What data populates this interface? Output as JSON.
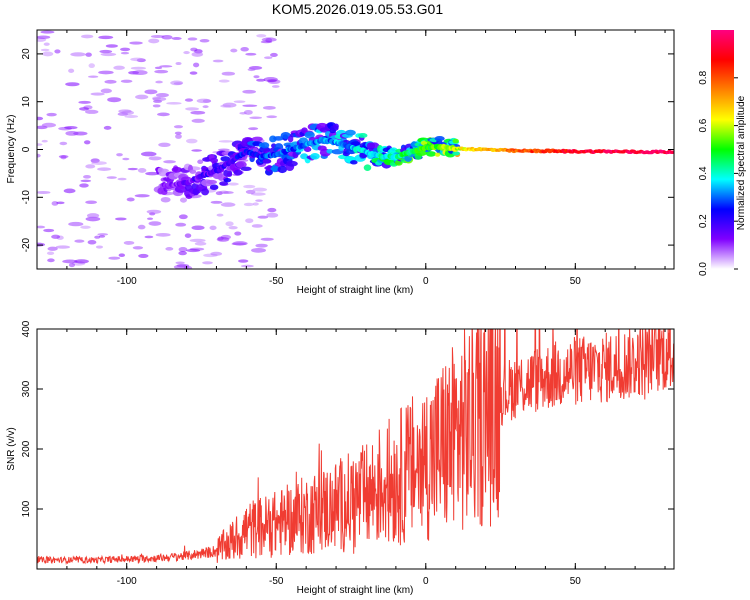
{
  "title": "KOM5.2026.019.05.53.G01",
  "chart_data": [
    {
      "type": "heatmap",
      "xlabel": "Height of straight line (km)",
      "ylabel": "Frequency (Hz)",
      "xlim": [
        -130,
        83
      ],
      "ylim": [
        -25,
        25
      ],
      "xticks": [
        -100,
        -50,
        0,
        50
      ],
      "yticks": [
        -20,
        -10,
        0,
        10,
        20
      ],
      "ridge": [
        {
          "x": -85,
          "f": -7.5,
          "a": 0.12
        },
        {
          "x": -80,
          "f": -7.0,
          "a": 0.14
        },
        {
          "x": -75,
          "f": -5.5,
          "a": 0.16
        },
        {
          "x": -70,
          "f": -4.5,
          "a": 0.18
        },
        {
          "x": -65,
          "f": -2.5,
          "a": 0.2
        },
        {
          "x": -60,
          "f": -0.5,
          "a": 0.24
        },
        {
          "x": -55,
          "f": -1.5,
          "a": 0.26
        },
        {
          "x": -50,
          "f": -1.0,
          "a": 0.28
        },
        {
          "x": -45,
          "f": 0.0,
          "a": 0.3
        },
        {
          "x": -40,
          "f": 1.0,
          "a": 0.3
        },
        {
          "x": -35,
          "f": 2.0,
          "a": 0.3
        },
        {
          "x": -30,
          "f": 1.5,
          "a": 0.32
        },
        {
          "x": -25,
          "f": 0.5,
          "a": 0.34
        },
        {
          "x": -20,
          "f": -0.5,
          "a": 0.36
        },
        {
          "x": -15,
          "f": -1.5,
          "a": 0.4
        },
        {
          "x": -10,
          "f": -1.5,
          "a": 0.42
        },
        {
          "x": -5,
          "f": -0.5,
          "a": 0.46
        },
        {
          "x": 0,
          "f": 0.5,
          "a": 0.5
        },
        {
          "x": 5,
          "f": 0.5,
          "a": 0.55
        },
        {
          "x": 10,
          "f": 0.2,
          "a": 0.6
        },
        {
          "x": 20,
          "f": 0.0,
          "a": 0.68
        },
        {
          "x": 30,
          "f": -0.3,
          "a": 0.78
        },
        {
          "x": 40,
          "f": -0.3,
          "a": 0.85
        },
        {
          "x": 50,
          "f": -0.4,
          "a": 0.9
        },
        {
          "x": 60,
          "f": -0.4,
          "a": 0.94
        },
        {
          "x": 70,
          "f": -0.5,
          "a": 0.96
        },
        {
          "x": 83,
          "f": -0.5,
          "a": 0.98
        }
      ],
      "colorbar": {
        "label": "Normalized spectral amplitude",
        "range": [
          0,
          1
        ],
        "ticks": [
          "0.0",
          "0.2",
          "0.4",
          "0.6",
          "0.8"
        ],
        "colormap": [
          "#ffffff",
          "#8000ff",
          "#0000ff",
          "#00ffff",
          "#00ff00",
          "#ffff00",
          "#ff8000",
          "#ff0000",
          "#ff0080"
        ]
      }
    },
    {
      "type": "line",
      "xlabel": "Height of straight line (km)",
      "ylabel": "SNR (v/v)",
      "xlim": [
        -130,
        83
      ],
      "ylim": [
        0,
        400
      ],
      "xticks": [
        -100,
        -50,
        0,
        50
      ],
      "yticks": [
        100,
        200,
        300,
        400
      ],
      "color": "#f03c32",
      "series": [
        {
          "name": "SNR",
          "x": [
            -130,
            -110,
            -90,
            -80,
            -70,
            -65,
            -60,
            -50,
            -40,
            -30,
            -20,
            -15,
            -10,
            -5,
            0,
            10,
            20,
            25,
            30,
            40,
            50,
            60,
            70,
            75,
            80,
            83
          ],
          "y": [
            15,
            15,
            18,
            22,
            30,
            45,
            65,
            75,
            90,
            105,
            120,
            140,
            150,
            165,
            180,
            220,
            260,
            290,
            305,
            320,
            330,
            335,
            345,
            355,
            360,
            355
          ]
        }
      ]
    }
  ]
}
